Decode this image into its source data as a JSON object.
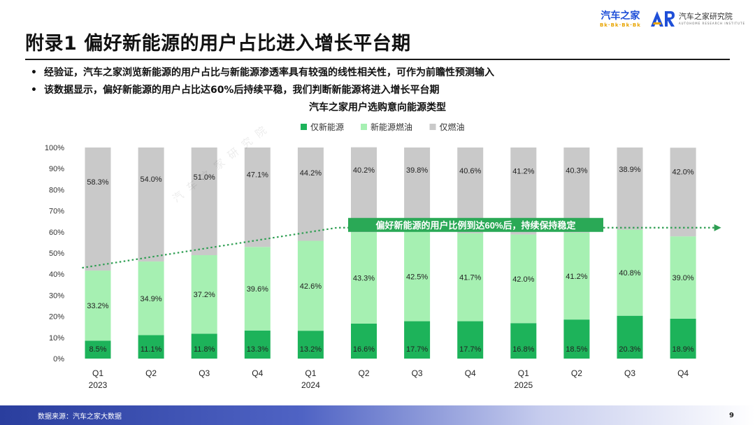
{
  "header": {
    "title": "附录1 偏好新能源的用户占比进入增长平台期",
    "bullets": [
      "经验证，汽车之家浏览新能源的用户占比与新能源渗透率具有较强的线性相关性，可作为前瞻性预测输入",
      "该数据显示，偏好新能源的用户占比达60%后持续平稳，我们判断新能源将进入增长平台期"
    ]
  },
  "logos": {
    "autohome_name": "汽车之家",
    "autohome_sub": "Bk·Bk·Bk·Bk",
    "research_name": "汽车之家研究院",
    "research_sub": "AUTOHOME RESEARCH INSTITUTE"
  },
  "colors": {
    "only_nev": "#1db35a",
    "nev_fuel": "#a6f0b2",
    "only_fuel": "#c9c9c9",
    "trend": "#2e9e52",
    "callout_bg": "#2aa956"
  },
  "chart_data": {
    "type": "bar",
    "stacked": true,
    "title": "汽车之家用户选购意向能源类型",
    "categories": [
      "Q1",
      "Q2",
      "Q3",
      "Q4",
      "Q1",
      "Q2",
      "Q3",
      "Q4",
      "Q1",
      "Q2",
      "Q3",
      "Q4"
    ],
    "year_labels": [
      "2023",
      "",
      "",
      "",
      "2024",
      "",
      "",
      "",
      "2025",
      "",
      "",
      ""
    ],
    "series": [
      {
        "name": "仅新能源",
        "color": "#1db35a",
        "values": [
          8.5,
          11.1,
          11.8,
          13.3,
          13.2,
          16.6,
          17.7,
          17.7,
          16.8,
          18.5,
          20.3,
          18.9
        ],
        "labels": [
          "8.5%",
          "11.1%",
          "11.8%",
          "13.3%",
          "13.2%",
          "16.6%",
          "17.7%",
          "17.7%",
          "16.8%",
          "18.5%",
          "20.3%",
          "18.9%"
        ]
      },
      {
        "name": "新能源燃油",
        "color": "#a6f0b2",
        "values": [
          33.2,
          34.9,
          37.2,
          39.6,
          42.6,
          43.3,
          42.5,
          41.7,
          42.0,
          41.2,
          40.8,
          39.0
        ],
        "labels": [
          "33.2%",
          "34.9%",
          "37.2%",
          "39.6%",
          "42.6%",
          "43.3%",
          "42.5%",
          "41.7%",
          "42.0%",
          "41.2%",
          "40.8%",
          "39.0%"
        ]
      },
      {
        "name": "仅燃油",
        "color": "#c9c9c9",
        "values": [
          58.3,
          54.0,
          51.0,
          47.1,
          44.2,
          40.2,
          39.8,
          40.6,
          41.2,
          40.3,
          38.9,
          42.0
        ],
        "labels": [
          "58.3%",
          "54.0%",
          "51.0%",
          "47.1%",
          "44.2%",
          "40.2%",
          "39.8%",
          "40.6%",
          "41.2%",
          "40.3%",
          "38.9%",
          "42.0%"
        ]
      }
    ],
    "ylim": [
      0,
      100
    ],
    "yticks": [
      "0%",
      "10%",
      "20%",
      "30%",
      "40%",
      "50%",
      "60%",
      "70%",
      "80%",
      "90%",
      "100%"
    ],
    "legend_position": "top-center",
    "trend_line": {
      "start_value": 43,
      "plateau_value": 62,
      "plateau_from_index": 5
    },
    "annotation": "偏好新能源的用户比例到达60%后，持续保持稳定"
  },
  "watermark": "汽车之家研究院",
  "footer": {
    "source": "数据来源：汽车之家大数据",
    "page_number": "9"
  }
}
